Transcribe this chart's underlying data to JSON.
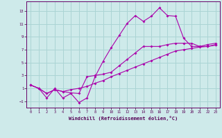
{
  "xlabel": "Windchill (Refroidissement éolien,°C)",
  "xlim": [
    -0.5,
    23.5
  ],
  "ylim": [
    -2.0,
    14.5
  ],
  "xticks": [
    0,
    1,
    2,
    3,
    4,
    5,
    6,
    7,
    8,
    9,
    10,
    11,
    12,
    13,
    14,
    15,
    16,
    17,
    18,
    19,
    20,
    21,
    22,
    23
  ],
  "yticks": [
    -1,
    1,
    3,
    5,
    7,
    9,
    11,
    13
  ],
  "background_color": "#ceeaea",
  "grid_color": "#aad4d4",
  "line_color": "#aa00aa",
  "line1_x": [
    0,
    1,
    2,
    3,
    4,
    5,
    6,
    7,
    8,
    9,
    10,
    11,
    12,
    13,
    14,
    15,
    16,
    17,
    18,
    19,
    20,
    21,
    22,
    23
  ],
  "line1_y": [
    1.5,
    1.0,
    -0.5,
    1.0,
    -0.5,
    0.2,
    -1.2,
    -0.5,
    2.8,
    5.2,
    7.3,
    9.2,
    11.1,
    12.3,
    11.4,
    12.2,
    13.5,
    12.3,
    12.2,
    8.8,
    7.5,
    7.5,
    7.8,
    8.0
  ],
  "line2_x": [
    0,
    1,
    2,
    3,
    4,
    5,
    6,
    7,
    8,
    9,
    10,
    11,
    12,
    13,
    14,
    15,
    16,
    17,
    18,
    19,
    20,
    21,
    22,
    23
  ],
  "line2_y": [
    1.5,
    1.0,
    0.2,
    0.8,
    0.5,
    0.3,
    0.2,
    2.8,
    3.0,
    3.2,
    3.5,
    4.5,
    5.5,
    6.5,
    7.5,
    7.5,
    7.5,
    7.8,
    8.0,
    8.0,
    8.0,
    7.5,
    7.5,
    7.8
  ],
  "line3_x": [
    0,
    1,
    2,
    3,
    4,
    5,
    6,
    7,
    8,
    9,
    10,
    11,
    12,
    13,
    14,
    15,
    16,
    17,
    18,
    19,
    20,
    21,
    22,
    23
  ],
  "line3_y": [
    1.5,
    1.0,
    0.2,
    0.8,
    0.5,
    0.8,
    1.0,
    1.3,
    1.8,
    2.2,
    2.8,
    3.3,
    3.8,
    4.3,
    4.8,
    5.3,
    5.8,
    6.3,
    6.8,
    7.0,
    7.2,
    7.4,
    7.5,
    7.7
  ]
}
